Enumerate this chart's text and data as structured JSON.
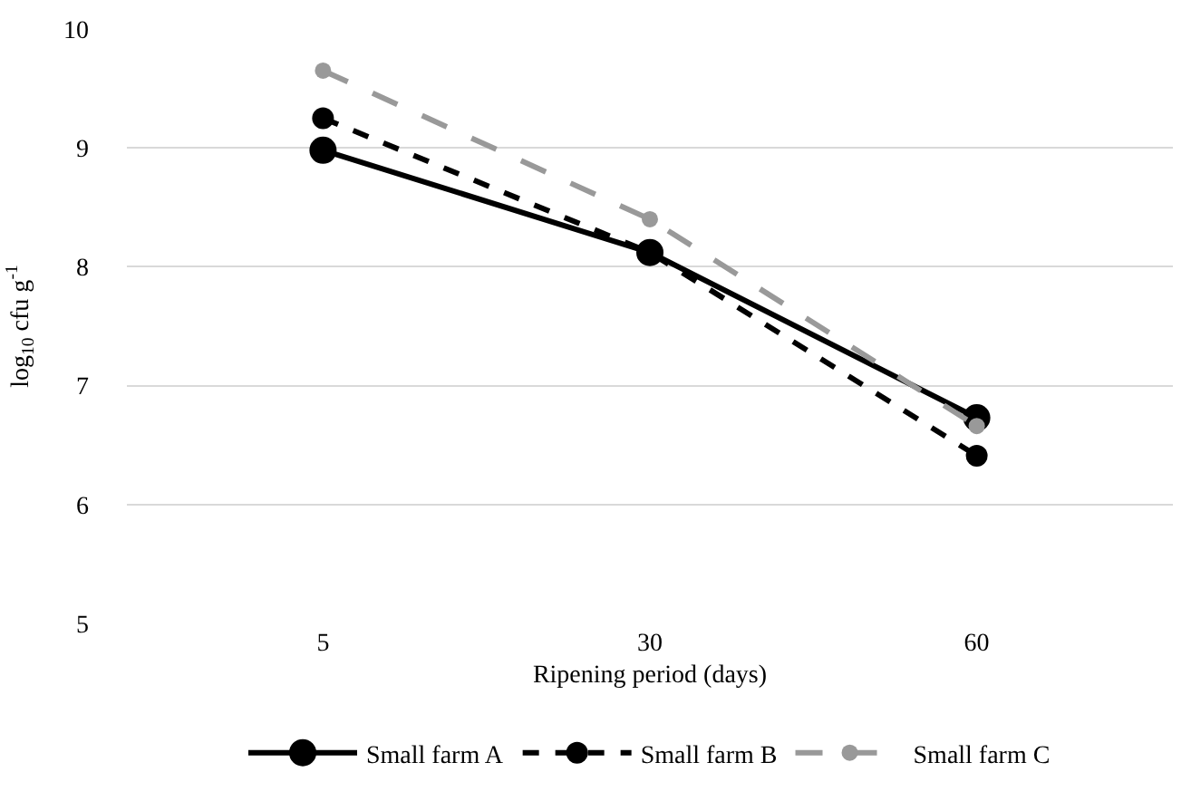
{
  "chart_data": {
    "type": "line",
    "xlabel": "Ripening period (days)",
    "ylabel": "log$_{10}$ cfu g$^{-1}$",
    "categories": [
      "5",
      "30",
      "60"
    ],
    "series": [
      {
        "name": "Small farm A",
        "color": "#000000",
        "line_style": "solid",
        "values": [
          8.98,
          8.12,
          6.73
        ]
      },
      {
        "name": "Small farm B",
        "color": "#000000",
        "line_style": "dashed",
        "values": [
          9.25,
          8.12,
          6.41
        ]
      },
      {
        "name": "Small farm C",
        "color": "#999999",
        "line_style": "dashed",
        "values": [
          9.65,
          8.4,
          6.66
        ]
      }
    ],
    "ylim": [
      5,
      10
    ],
    "yticks": [
      5,
      6,
      7,
      8,
      9,
      10
    ],
    "grid": "y",
    "legend": "bottom",
    "marker": "circle"
  }
}
